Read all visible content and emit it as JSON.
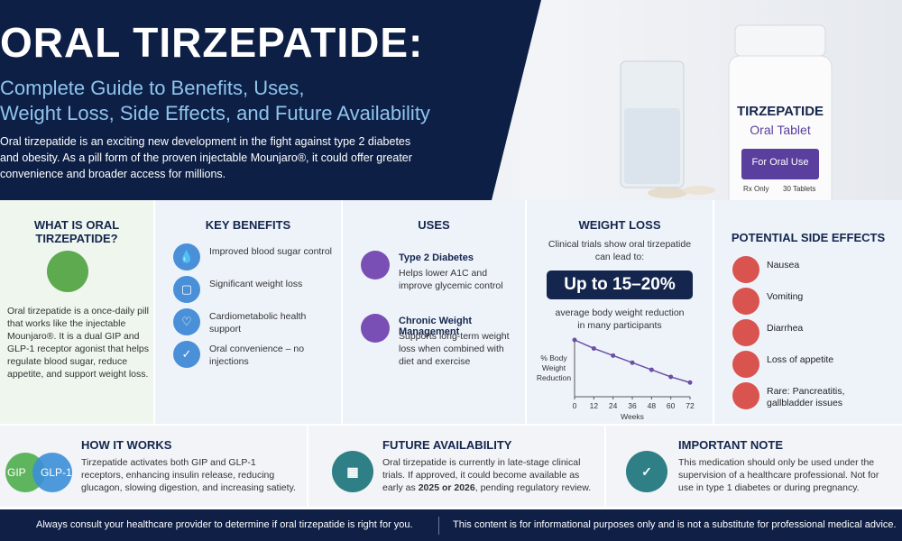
{
  "header": {
    "title": "ORAL TIRZEPATIDE:",
    "subtitle_lines": [
      "Complete Guide to Benefits, Uses,",
      "Weight Loss, Side Effects, and Future Availability"
    ],
    "intro": "Oral tirzepatide is an exciting new development in the fight against type 2 diabetes and obesity. As a pill form of the proven injectable Mounjaro®, it could offer greater convenience and broader access for millions."
  },
  "bottle": {
    "brand": "TIRZEPATIDE",
    "form": "Oral Tablet",
    "use": "For Oral Use",
    "rx": "Rx Only",
    "count": "30 Tablets"
  },
  "what_is": {
    "title": "WHAT IS ORAL TIRZEPATIDE?",
    "text": "Oral tirzepatide is a once-daily pill that works like the injectable Mounjaro®. It is a dual GIP and GLP-1 receptor agonist that helps regulate blood sugar, reduce appetite, and support weight loss."
  },
  "benefits": {
    "title": "KEY BENEFITS",
    "items": [
      "Improved blood sugar control",
      "Significant weight loss",
      "Cardiometabolic health support",
      "Oral convenience – no injections"
    ]
  },
  "uses": {
    "title": "USES",
    "items": [
      {
        "title": "Type 2 Diabetes",
        "text": "Helps lower A1C and improve glycemic control"
      },
      {
        "title": "Chronic Weight Management",
        "text": "Supports long-term weight loss when combined with diet and exercise"
      }
    ]
  },
  "weight_loss": {
    "title": "WEIGHT LOSS",
    "lead": "Clinical trials show oral tirzepatide can lead to:",
    "highlight": "Up to 15–20%",
    "sub": "average body weight reduction in many participants",
    "chart": {
      "type": "line",
      "y_label": "% Body Weight Reduction",
      "x_label": "Weeks",
      "x": [
        0,
        12,
        24,
        36,
        48,
        60,
        72
      ],
      "values": [
        0,
        -3,
        -5.5,
        -8,
        -10.5,
        -13,
        -15
      ],
      "xlim": [
        0,
        72
      ],
      "xticks": [
        0,
        12,
        24,
        36,
        48,
        60,
        72
      ],
      "ylim": [
        -20,
        0
      ],
      "color": "#6b4fa3"
    }
  },
  "side_effects": {
    "title": "POTENTIAL SIDE EFFECTS",
    "items": [
      "Nausea",
      "Vomiting",
      "Diarrhea",
      "Loss of appetite",
      "Rare: Pancreatitis, gallbladder issues"
    ]
  },
  "how": {
    "title": "HOW IT WORKS",
    "badges": [
      "GIP",
      "GLP-1"
    ],
    "text": "Tirzepatide activates both GIP and GLP-1 receptors, enhancing insulin release, reducing glucagon, slowing digestion, and increasing satiety."
  },
  "future": {
    "title": "FUTURE AVAILABILITY",
    "text_parts": [
      "Oral tirzepatide is currently in late-stage clinical trials. If approved, it could become available as early as ",
      "2025 or 2026",
      ", pending regulatory review."
    ]
  },
  "note": {
    "title": "IMPORTANT NOTE",
    "text": "This medication should only be used under the supervision of a healthcare professional. Not for use in type 1 diabetes or during pregnancy."
  },
  "footer": {
    "left": "Always consult your healthcare provider to determine if oral tirzepatide is right for you.",
    "right": "This content is for informational purposes only and is not a substitute for professional medical advice."
  }
}
